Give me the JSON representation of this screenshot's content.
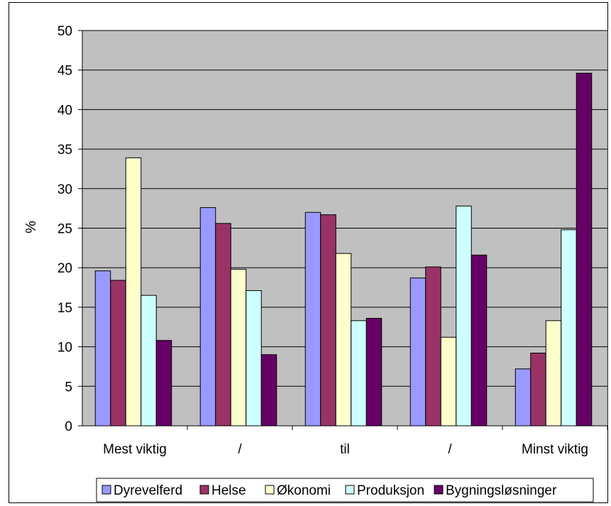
{
  "chart_data": {
    "type": "bar",
    "title": "",
    "xlabel": "",
    "ylabel": "%",
    "ylim": [
      0,
      50
    ],
    "yticks": [
      0,
      5,
      10,
      15,
      20,
      25,
      30,
      35,
      40,
      45,
      50
    ],
    "grid": true,
    "legend_position": "bottom",
    "categories": [
      "Mest viktig",
      "/",
      "til",
      "/",
      "Minst viktig"
    ],
    "series": [
      {
        "name": "Dyrevelferd",
        "color": "#9999ff",
        "values": [
          19.6,
          27.6,
          27.0,
          18.7,
          7.2
        ]
      },
      {
        "name": "Helse",
        "color": "#993366",
        "values": [
          18.4,
          25.6,
          26.7,
          20.1,
          9.2
        ]
      },
      {
        "name": "Økonomi",
        "color": "#ffffcc",
        "values": [
          33.9,
          19.8,
          21.8,
          11.2,
          13.3
        ]
      },
      {
        "name": "Produksjon",
        "color": "#ccffff",
        "values": [
          16.5,
          17.1,
          13.3,
          27.8,
          24.8
        ]
      },
      {
        "name": "Bygningsløsninger",
        "color": "#660066",
        "values": [
          10.8,
          9.0,
          13.6,
          21.6,
          44.6
        ]
      }
    ],
    "plot_background": "#c0c0c0"
  }
}
